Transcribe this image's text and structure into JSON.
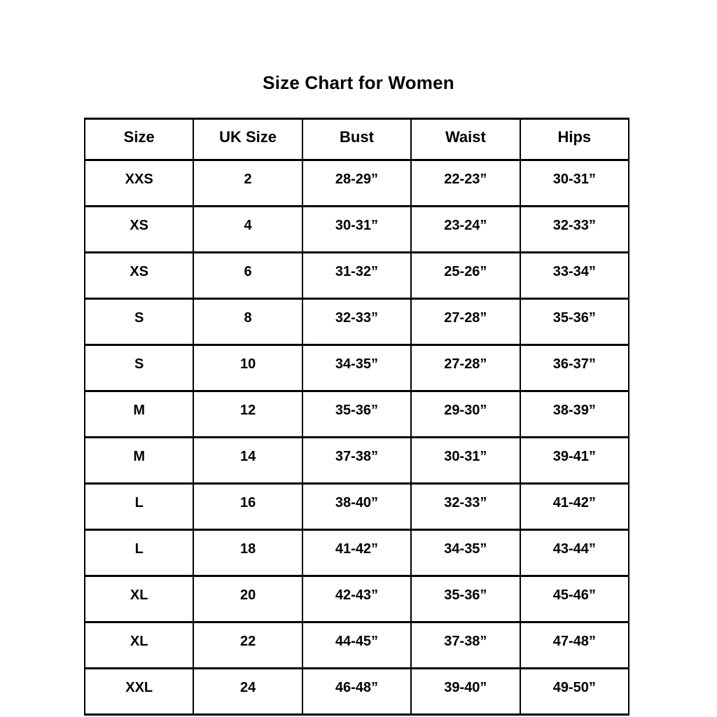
{
  "chart_data": {
    "type": "table",
    "title": "Size Chart for Women",
    "headers": [
      "Size",
      "UK Size",
      "Bust",
      "Waist",
      "Hips"
    ],
    "rows": [
      [
        "XXS",
        "2",
        "28-29”",
        "22-23”",
        "30-31”"
      ],
      [
        "XS",
        "4",
        "30-31”",
        "23-24”",
        "32-33”"
      ],
      [
        "XS",
        "6",
        "31-32”",
        "25-26”",
        "33-34”"
      ],
      [
        "S",
        "8",
        "32-33”",
        "27-28”",
        "35-36”"
      ],
      [
        "S",
        "10",
        "34-35”",
        "27-28”",
        "36-37”"
      ],
      [
        "M",
        "12",
        "35-36”",
        "29-30”",
        "38-39”"
      ],
      [
        "M",
        "14",
        "37-38”",
        "30-31”",
        "39-41”"
      ],
      [
        "L",
        "16",
        "38-40”",
        "32-33”",
        "41-42”"
      ],
      [
        "L",
        "18",
        "41-42”",
        "34-35”",
        "43-44”"
      ],
      [
        "XL",
        "20",
        "42-43”",
        "35-36”",
        "45-46”"
      ],
      [
        "XL",
        "22",
        "44-45”",
        "37-38”",
        "47-48”"
      ],
      [
        "XXL",
        "24",
        "46-48”",
        "39-40”",
        "49-50”"
      ]
    ],
    "colors": {
      "border": "#000000",
      "text": "#000000",
      "background": "#ffffff"
    }
  }
}
